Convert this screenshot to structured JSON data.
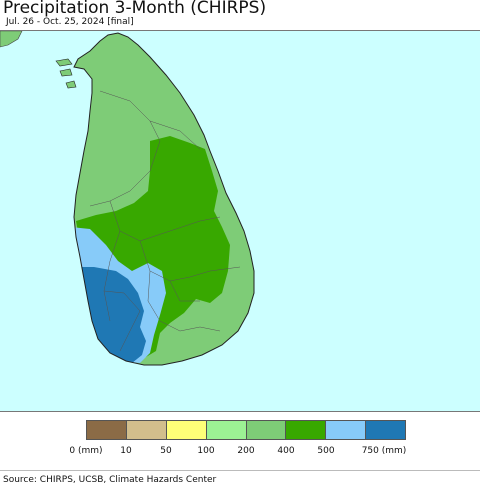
{
  "header": {
    "title": "Precipitation 3-Month (CHIRPS)",
    "subtitle": "Jul. 26 - Oct. 25, 2024 [final]"
  },
  "map": {
    "ocean_color": "#ccffff",
    "border_color": "#555555"
  },
  "legend": {
    "colors": [
      "#8b6b46",
      "#d2be8c",
      "#ffff78",
      "#9cf294",
      "#7ecc77",
      "#38a800",
      "#87cbf9",
      "#1f78b4"
    ],
    "labels": [
      "0 (mm)",
      "10",
      "50",
      "100",
      "200",
      "400",
      "500",
      "750 (mm)"
    ]
  },
  "footer": {
    "source": "Source: CHIRPS, UCSB, Climate Hazards Center"
  }
}
